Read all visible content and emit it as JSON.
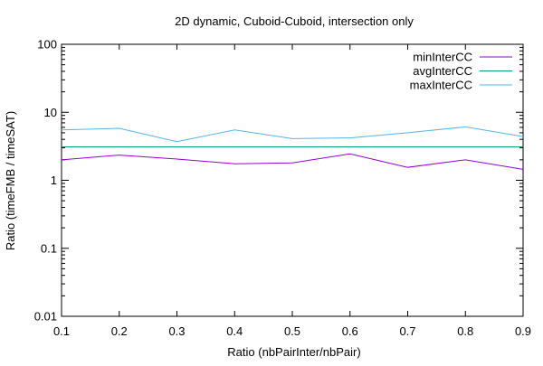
{
  "chart_data": {
    "type": "line",
    "title": "2D dynamic, Cuboid-Cuboid, intersection only",
    "xlabel": "Ratio (nbPairInter/nbPair)",
    "ylabel": "Ratio (timeFMB / timeSAT)",
    "xlim": [
      0.1,
      0.9
    ],
    "ylim": [
      0.01,
      100
    ],
    "yscale": "log",
    "grid": false,
    "legend_position": "top-right",
    "x": [
      0.1,
      0.2,
      0.3,
      0.4,
      0.5,
      0.6,
      0.7,
      0.8,
      0.9
    ],
    "xticks": [
      "0.1",
      "0.2",
      "0.3",
      "0.4",
      "0.5",
      "0.6",
      "0.7",
      "0.8",
      "0.9"
    ],
    "yticks": [
      {
        "value": 0.01,
        "label": "0.01"
      },
      {
        "value": 0.1,
        "label": "0.1"
      },
      {
        "value": 1,
        "label": "1"
      },
      {
        "value": 10,
        "label": "10"
      },
      {
        "value": 100,
        "label": "100"
      }
    ],
    "series": [
      {
        "name": "minInterCC",
        "color": "#9400d3",
        "values": [
          2.0,
          2.35,
          2.05,
          1.75,
          1.8,
          2.45,
          1.55,
          2.0,
          1.45
        ]
      },
      {
        "name": "avgInterCC",
        "color": "#009e73",
        "values": [
          3.1,
          3.1,
          3.1,
          3.1,
          3.1,
          3.1,
          3.1,
          3.1,
          3.1
        ]
      },
      {
        "name": "maxInterCC",
        "color": "#56b4e9",
        "values": [
          5.5,
          5.8,
          3.7,
          5.5,
          4.1,
          4.2,
          5.0,
          6.1,
          4.4
        ]
      }
    ]
  }
}
